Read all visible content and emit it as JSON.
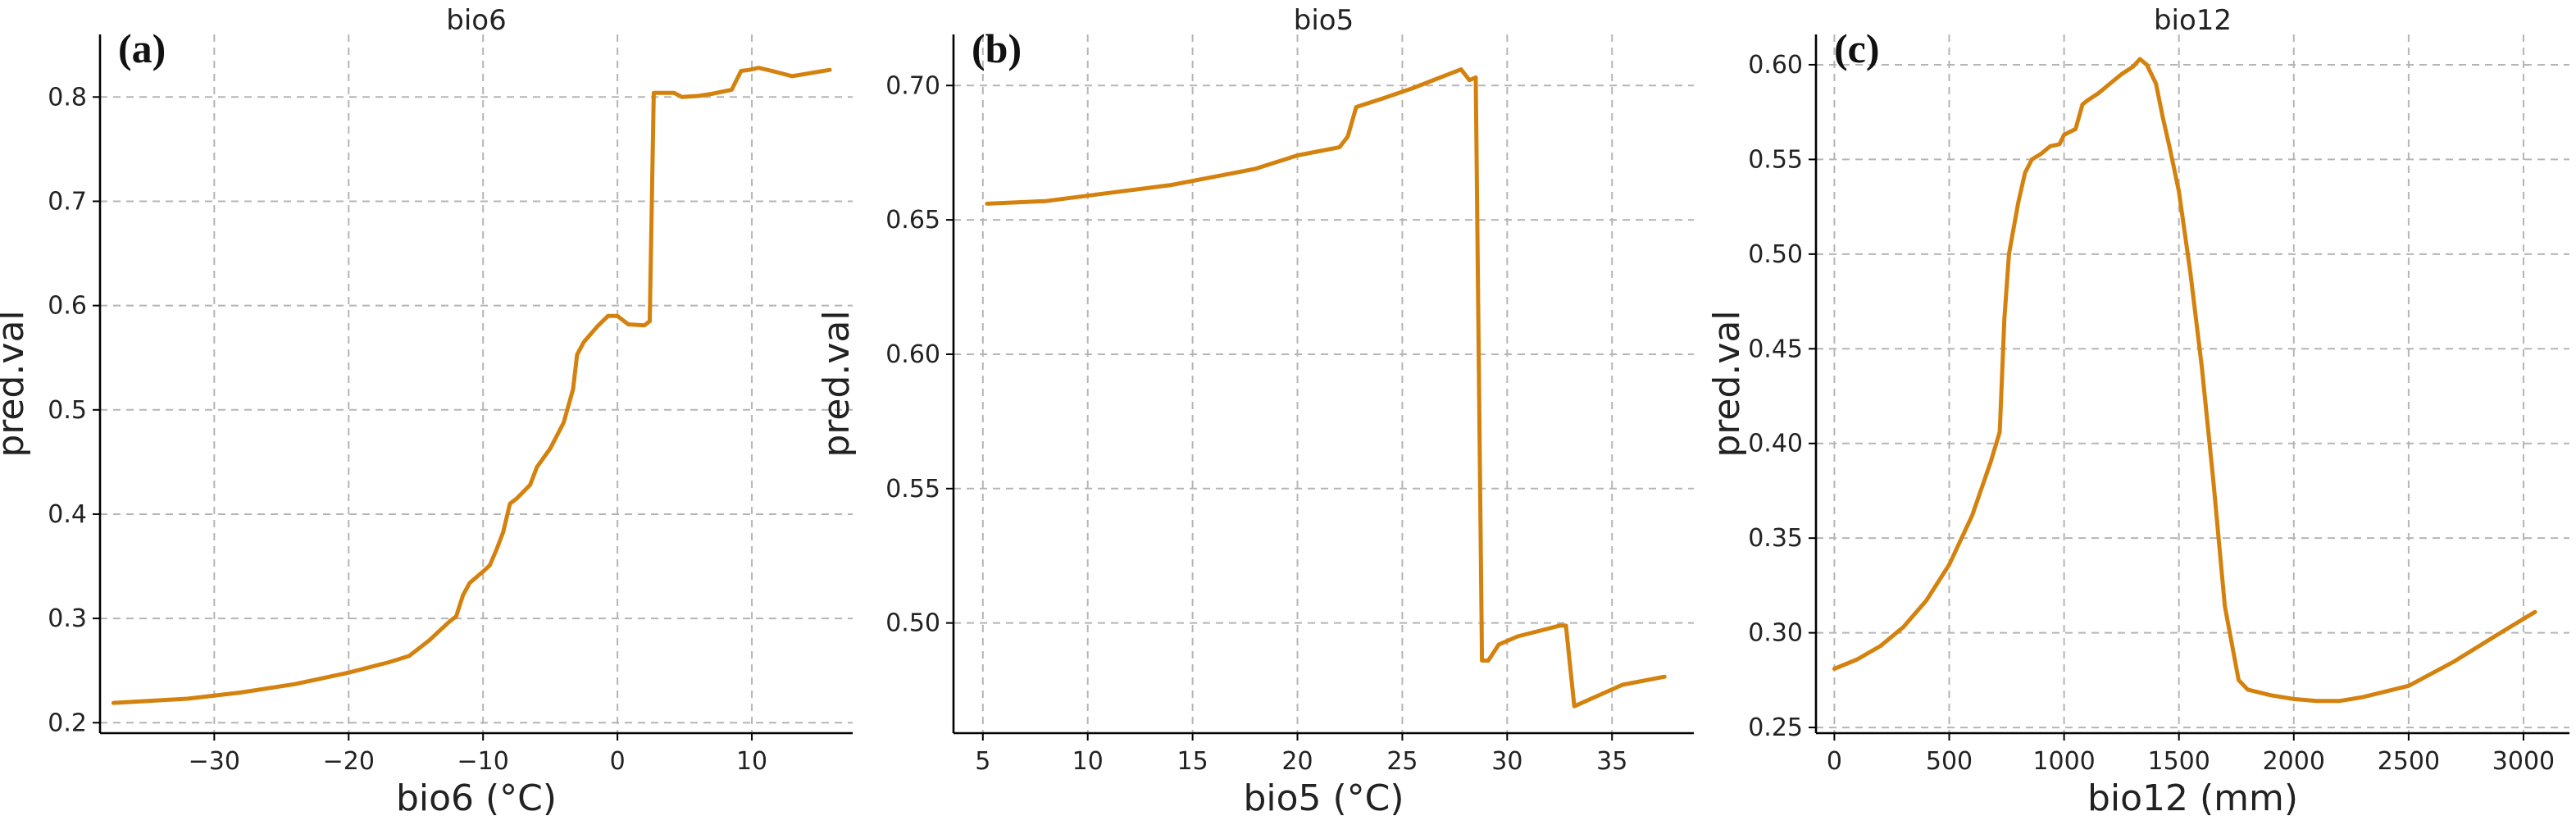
{
  "figure": {
    "line_color": "#D4820D",
    "axis_color": "#000000",
    "grid_color": "#b5b5b5"
  },
  "chart_data": [
    {
      "type": "line",
      "panel_label": "(a)",
      "title": "bio6",
      "xlabel": "bio6 (°C)",
      "ylabel": "pred.val",
      "xlim": [
        -38.5,
        17.5
      ],
      "ylim": [
        0.19,
        0.86
      ],
      "xticks": [
        -30,
        -20,
        -10,
        0,
        10
      ],
      "xtick_labels": [
        "−30",
        "−20",
        "−10",
        "0",
        "10"
      ],
      "yticks": [
        0.2,
        0.3,
        0.4,
        0.5,
        0.6,
        0.7,
        0.8
      ],
      "ytick_labels": [
        "0.2",
        "0.3",
        "0.4",
        "0.5",
        "0.6",
        "0.7",
        "0.8"
      ],
      "grid": true,
      "series": [
        {
          "name": "bio6",
          "x": [
            -37.5,
            -32,
            -28,
            -24,
            -20,
            -17,
            -15.5,
            -14,
            -12.5,
            -12,
            -11.5,
            -11,
            -10,
            -9.5,
            -9,
            -8.5,
            -8,
            -7.5,
            -6.5,
            -6,
            -5,
            -4,
            -3.3,
            -3,
            -2.5,
            -1.5,
            -0.7,
            0,
            0.8,
            2,
            2.4,
            2.7,
            4.2,
            4.8,
            6,
            7,
            8.5,
            9.2,
            9.8,
            10.5,
            11.5,
            13,
            15.8
          ],
          "y": [
            0.219,
            0.223,
            0.229,
            0.237,
            0.248,
            0.258,
            0.264,
            0.279,
            0.297,
            0.302,
            0.322,
            0.334,
            0.345,
            0.351,
            0.366,
            0.383,
            0.41,
            0.415,
            0.428,
            0.445,
            0.463,
            0.488,
            0.52,
            0.553,
            0.565,
            0.58,
            0.59,
            0.59,
            0.582,
            0.581,
            0.585,
            0.804,
            0.804,
            0.8,
            0.801,
            0.803,
            0.807,
            0.825,
            0.826,
            0.828,
            0.825,
            0.82,
            0.826
          ]
        }
      ]
    },
    {
      "type": "line",
      "panel_label": "(b)",
      "title": "bio5",
      "xlabel": "bio5 (°C)",
      "ylabel": "pred.val",
      "xlim": [
        3.6,
        38.9
      ],
      "ylim": [
        0.459,
        0.719
      ],
      "xticks": [
        5,
        10,
        15,
        20,
        25,
        30,
        35
      ],
      "xtick_labels": [
        "5",
        "10",
        "15",
        "20",
        "25",
        "30",
        "35"
      ],
      "yticks": [
        0.5,
        0.55,
        0.6,
        0.65,
        0.7
      ],
      "ytick_labels": [
        "0.50",
        "0.55",
        "0.60",
        "0.65",
        "0.70"
      ],
      "grid": true,
      "series": [
        {
          "name": "bio5",
          "x": [
            5.2,
            8,
            11,
            14,
            16,
            18,
            20,
            22,
            22.4,
            22.8,
            24,
            25.5,
            27.8,
            28.2,
            28.5,
            28.8,
            29.1,
            29.6,
            30.5,
            31.5,
            32.5,
            32.8,
            33.2,
            35.5,
            37.5
          ],
          "y": [
            0.656,
            0.657,
            0.66,
            0.663,
            0.666,
            0.669,
            0.674,
            0.677,
            0.681,
            0.692,
            0.695,
            0.699,
            0.706,
            0.702,
            0.703,
            0.486,
            0.486,
            0.492,
            0.495,
            0.497,
            0.499,
            0.499,
            0.469,
            0.477,
            0.48
          ]
        }
      ]
    },
    {
      "type": "line",
      "panel_label": "(c)",
      "title": "bio12",
      "xlabel": "bio12 (mm)",
      "ylabel": "pred.val",
      "xlim": [
        -80,
        3200
      ],
      "ylim": [
        0.247,
        0.616
      ],
      "xticks": [
        0,
        500,
        1000,
        1500,
        2000,
        2500,
        3000
      ],
      "xtick_labels": [
        "0",
        "500",
        "1000",
        "1500",
        "2000",
        "2500",
        "3000"
      ],
      "yticks": [
        0.25,
        0.3,
        0.35,
        0.4,
        0.45,
        0.5,
        0.55,
        0.6
      ],
      "ytick_labels": [
        "0.25",
        "0.30",
        "0.35",
        "0.40",
        "0.45",
        "0.50",
        "0.55",
        "0.60"
      ],
      "grid": true,
      "series": [
        {
          "name": "bio12",
          "x": [
            0,
            100,
            200,
            300,
            400,
            500,
            600,
            680,
            720,
            740,
            760,
            800,
            830,
            860,
            900,
            940,
            980,
            1000,
            1050,
            1080,
            1100,
            1150,
            1200,
            1250,
            1300,
            1330,
            1360,
            1400,
            1430,
            1460,
            1500,
            1550,
            1600,
            1650,
            1700,
            1760,
            1800,
            1900,
            2000,
            2100,
            2200,
            2300,
            2400,
            2500,
            2700,
            2900,
            3050
          ],
          "y": [
            0.281,
            0.286,
            0.293,
            0.303,
            0.317,
            0.336,
            0.362,
            0.39,
            0.406,
            0.466,
            0.5,
            0.527,
            0.543,
            0.55,
            0.553,
            0.557,
            0.558,
            0.563,
            0.566,
            0.579,
            0.581,
            0.585,
            0.59,
            0.595,
            0.599,
            0.603,
            0.6,
            0.59,
            0.572,
            0.556,
            0.533,
            0.49,
            0.44,
            0.38,
            0.314,
            0.275,
            0.27,
            0.267,
            0.265,
            0.264,
            0.264,
            0.266,
            0.269,
            0.272,
            0.285,
            0.3,
            0.311
          ]
        }
      ]
    }
  ]
}
